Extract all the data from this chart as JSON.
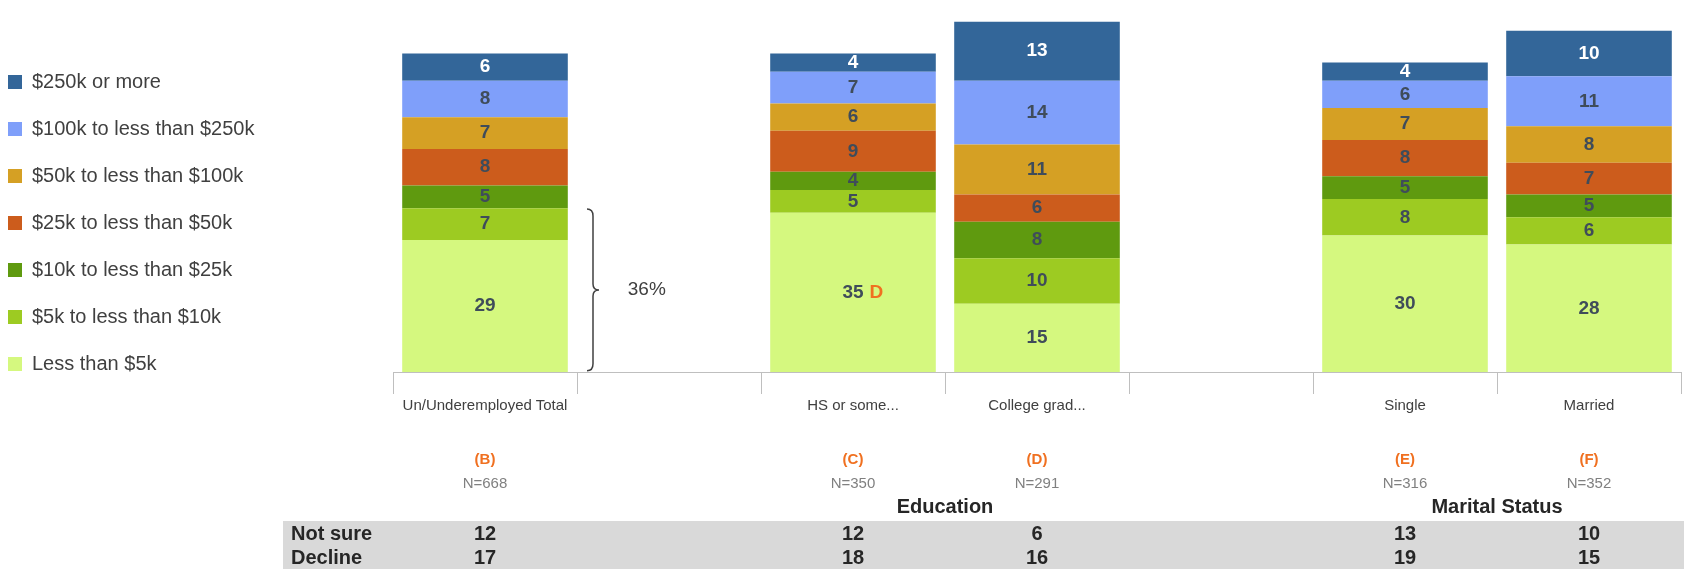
{
  "chart_data": [
    {
      "type": "bar",
      "stacked": true,
      "categories": [
        "Un/Underemployed Total",
        null,
        "HS or some...",
        "College grad...",
        null,
        "Single",
        "Married"
      ],
      "legend": "left",
      "series": [
        {
          "name": "Less than $5k",
          "color": "#d5f87f",
          "values": [
            29,
            null,
            35,
            15,
            null,
            30,
            28
          ],
          "value_labels": [
            "29",
            null,
            "35 D",
            "15",
            null,
            "30",
            "28"
          ]
        },
        {
          "name": "$5k to less than $10k",
          "color": "#9dcb22",
          "values": [
            7,
            null,
            5,
            10,
            null,
            8,
            6
          ],
          "value_labels": [
            "7",
            null,
            "5",
            "10",
            null,
            "8",
            "6"
          ]
        },
        {
          "name": "$10k to less than $25k",
          "color": "#5f9a0f",
          "values": [
            5,
            null,
            4,
            8,
            null,
            5,
            5
          ],
          "value_labels": [
            "5",
            null,
            "4",
            "8",
            null,
            "5",
            "5"
          ]
        },
        {
          "name": "$25k to less than $50k",
          "color": "#cc5c1c",
          "values": [
            8,
            null,
            9,
            6,
            null,
            8,
            7
          ],
          "value_labels": [
            "8",
            null,
            "9",
            "6",
            null,
            "8",
            "7"
          ]
        },
        {
          "name": "$50k to less than $100k",
          "color": "#d5a024",
          "values": [
            7,
            null,
            6,
            11,
            null,
            7,
            8
          ],
          "value_labels": [
            "7",
            null,
            "6",
            "11",
            null,
            "7",
            "8"
          ]
        },
        {
          "name": "$100k to less than $250k",
          "color": "#7f9ffa",
          "values": [
            8,
            null,
            7,
            14,
            null,
            6,
            11
          ],
          "value_labels": [
            "8",
            null,
            "7",
            "14",
            null,
            "6",
            "11"
          ]
        },
        {
          "name": "$250k or more",
          "color": "#336699",
          "values": [
            6,
            null,
            4,
            13,
            null,
            4,
            10
          ],
          "value_labels": [
            "6",
            null,
            "4",
            "13",
            null,
            "4",
            "10"
          ]
        }
      ],
      "annotations": [
        "36%"
      ]
    },
    {
      "type": "heatmap",
      "categories": [
        "(B) N=668",
        null,
        "(C) N=350",
        "(D) N=291",
        null,
        "(E) N=316",
        "(F) N=352"
      ],
      "y_categories": [
        "Not sure",
        "Decline"
      ],
      "cells": [
        [
          12,
          null,
          12,
          6,
          null,
          13,
          10
        ],
        [
          17,
          null,
          18,
          16,
          null,
          19,
          15
        ]
      ],
      "color": "#d9d9d9",
      "data_labels": true,
      "annotations": [
        "Education",
        "Marital Status"
      ]
    }
  ]
}
